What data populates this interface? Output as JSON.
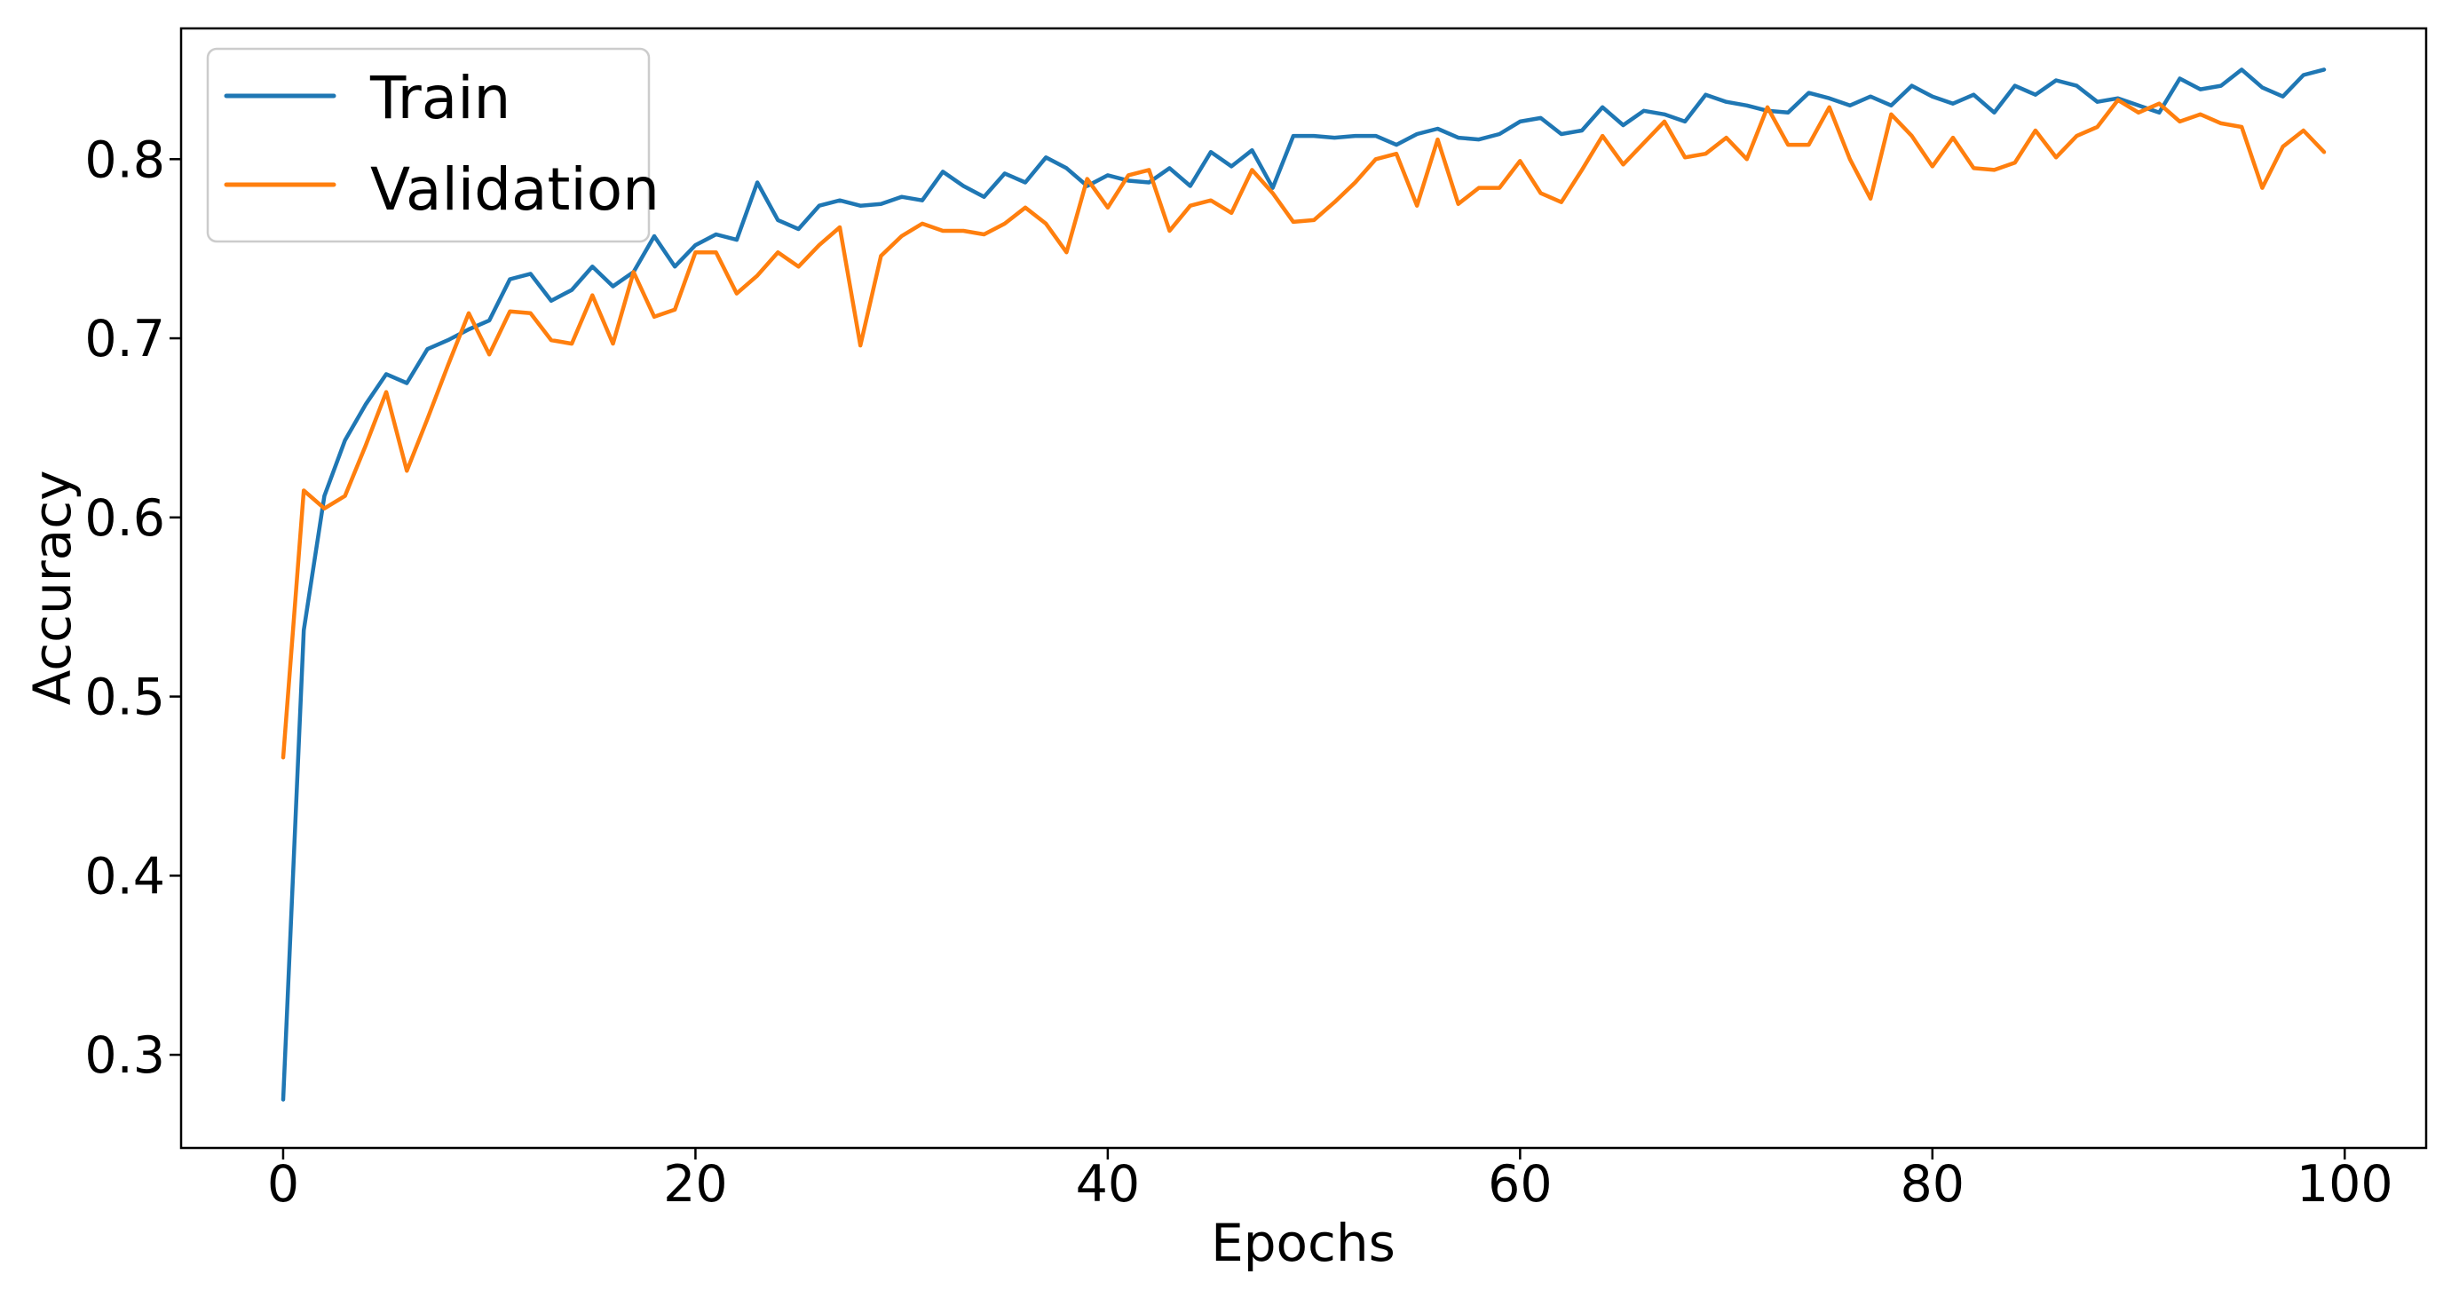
{
  "chart_data": {
    "type": "line",
    "title": "",
    "xlabel": "Epochs",
    "ylabel": "Accuracy",
    "grid": false,
    "legend_position": "upper left",
    "legend_entries": [
      "Train",
      "Validation"
    ],
    "background_color": "#ffffff",
    "xticks": [
      0,
      20,
      40,
      60,
      80,
      100
    ],
    "yticks": [
      0.3,
      0.4,
      0.5,
      0.6,
      0.7,
      0.8
    ],
    "xlim": [
      -4.95,
      103.95
    ],
    "ylim": [
      0.248,
      0.873
    ],
    "x": [
      0,
      1,
      2,
      3,
      4,
      5,
      6,
      7,
      8,
      9,
      10,
      11,
      12,
      13,
      14,
      15,
      16,
      17,
      18,
      19,
      20,
      21,
      22,
      23,
      24,
      25,
      26,
      27,
      28,
      29,
      30,
      31,
      32,
      33,
      34,
      35,
      36,
      37,
      38,
      39,
      40,
      41,
      42,
      43,
      44,
      45,
      46,
      47,
      48,
      49,
      50,
      51,
      52,
      53,
      54,
      55,
      56,
      57,
      58,
      59,
      60,
      61,
      62,
      63,
      64,
      65,
      66,
      67,
      68,
      69,
      70,
      71,
      72,
      73,
      74,
      75,
      76,
      77,
      78,
      79,
      80,
      81,
      82,
      83,
      84,
      85,
      86,
      87,
      88,
      89,
      90,
      91,
      92,
      93,
      94,
      95,
      96,
      97,
      98,
      99
    ],
    "series": [
      {
        "name": "Train",
        "color": "#1f77b4",
        "values": [
          0.275,
          0.537,
          0.612,
          0.643,
          0.663,
          0.68,
          0.675,
          0.694,
          0.699,
          0.705,
          0.71,
          0.733,
          0.736,
          0.721,
          0.727,
          0.74,
          0.729,
          0.737,
          0.757,
          0.74,
          0.752,
          0.758,
          0.755,
          0.787,
          0.766,
          0.761,
          0.774,
          0.777,
          0.774,
          0.775,
          0.779,
          0.777,
          0.793,
          0.785,
          0.779,
          0.792,
          0.787,
          0.801,
          0.795,
          0.785,
          0.791,
          0.788,
          0.787,
          0.795,
          0.785,
          0.804,
          0.796,
          0.805,
          0.784,
          0.813,
          0.813,
          0.812,
          0.813,
          0.813,
          0.808,
          0.814,
          0.817,
          0.812,
          0.811,
          0.814,
          0.821,
          0.823,
          0.814,
          0.816,
          0.829,
          0.819,
          0.827,
          0.825,
          0.821,
          0.836,
          0.832,
          0.83,
          0.827,
          0.826,
          0.837,
          0.834,
          0.83,
          0.835,
          0.83,
          0.841,
          0.835,
          0.831,
          0.836,
          0.826,
          0.841,
          0.836,
          0.844,
          0.841,
          0.832,
          0.834,
          0.83,
          0.826,
          0.845,
          0.839,
          0.841,
          0.85,
          0.84,
          0.835,
          0.847,
          0.85
        ]
      },
      {
        "name": "Validation",
        "color": "#ff7f0e",
        "values": [
          0.466,
          0.615,
          0.605,
          0.612,
          0.64,
          0.67,
          0.626,
          0.655,
          0.685,
          0.714,
          0.691,
          0.715,
          0.714,
          0.699,
          0.697,
          0.724,
          0.697,
          0.737,
          0.712,
          0.716,
          0.748,
          0.748,
          0.725,
          0.735,
          0.748,
          0.74,
          0.752,
          0.762,
          0.696,
          0.746,
          0.757,
          0.764,
          0.76,
          0.76,
          0.758,
          0.764,
          0.773,
          0.764,
          0.748,
          0.789,
          0.773,
          0.791,
          0.794,
          0.76,
          0.774,
          0.777,
          0.77,
          0.794,
          0.781,
          0.765,
          0.766,
          0.776,
          0.787,
          0.8,
          0.803,
          0.774,
          0.811,
          0.775,
          0.784,
          0.784,
          0.799,
          0.781,
          0.776,
          0.794,
          0.813,
          0.797,
          0.809,
          0.821,
          0.801,
          0.803,
          0.812,
          0.8,
          0.829,
          0.808,
          0.808,
          0.829,
          0.8,
          0.778,
          0.825,
          0.813,
          0.796,
          0.812,
          0.795,
          0.794,
          0.798,
          0.816,
          0.801,
          0.813,
          0.818,
          0.833,
          0.826,
          0.831,
          0.821,
          0.825,
          0.82,
          0.818,
          0.784,
          0.807,
          0.816,
          0.804
        ]
      }
    ]
  }
}
